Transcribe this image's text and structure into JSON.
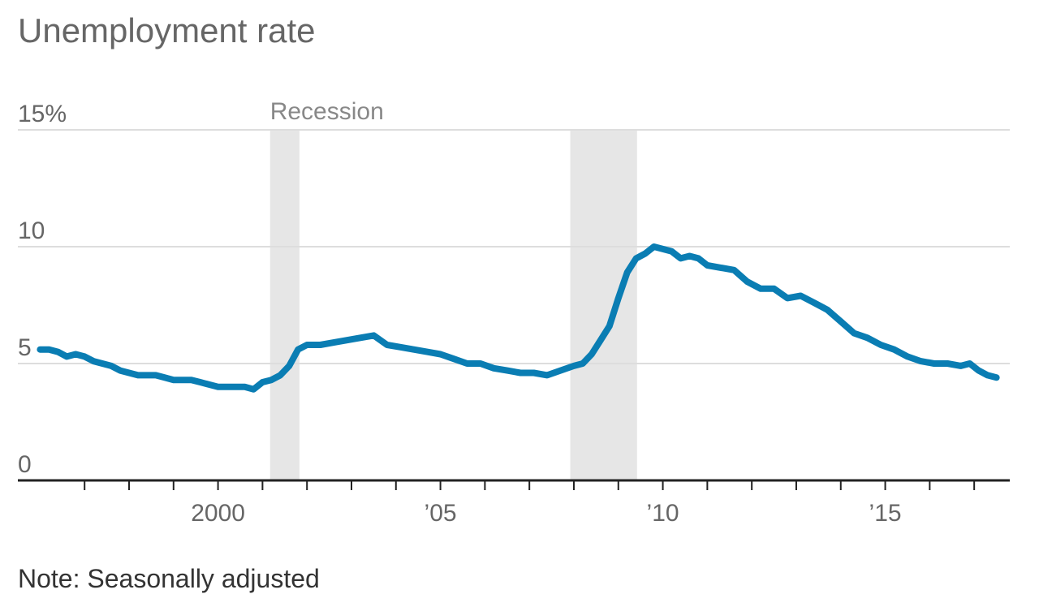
{
  "chart_data": {
    "type": "line",
    "title": "Unemployment rate",
    "note": "Note: Seasonally adjusted",
    "y_unit_label": "15%",
    "y_ticks": [
      {
        "value": 0,
        "label": "0"
      },
      {
        "value": 5,
        "label": "5"
      },
      {
        "value": 10,
        "label": "10"
      },
      {
        "value": 15,
        "label": "15%"
      }
    ],
    "ylim": [
      0,
      15
    ],
    "xlim": [
      1995.5,
      2017.8
    ],
    "x_ticks": [
      {
        "value": 2000,
        "label": "2000"
      },
      {
        "value": 2005,
        "label": "’05"
      },
      {
        "value": 2010,
        "label": "’10"
      },
      {
        "value": 2015,
        "label": "’15"
      }
    ],
    "x_minor_ticks": [
      1997,
      1998,
      1999,
      2001,
      2002,
      2003,
      2004,
      2006,
      2007,
      2008,
      2009,
      2011,
      2012,
      2013,
      2014,
      2016,
      2017
    ],
    "gridlines": [
      5,
      10,
      15
    ],
    "recession_label": "Recession",
    "recessions": [
      {
        "start": 2001.17,
        "end": 2001.83
      },
      {
        "start": 2007.92,
        "end": 2009.42
      }
    ],
    "colors": {
      "line": "#0a7db3",
      "recession": "#e6e6e6",
      "grid": "#dddddd",
      "axis": "#222222",
      "text": "#666666"
    },
    "series": [
      {
        "x": [
          1996.0,
          1996.2,
          1996.4,
          1996.6,
          1996.8,
          1997.0,
          1997.2,
          1997.4,
          1997.6,
          1997.8,
          1998.0,
          1998.2,
          1998.4,
          1998.6,
          1998.8,
          1999.0,
          1999.2,
          1999.4,
          1999.6,
          1999.8,
          2000.0,
          2000.2,
          2000.4,
          2000.6,
          2000.8,
          2001.0,
          2001.2,
          2001.4,
          2001.6,
          2001.8,
          2002.0,
          2002.3,
          2002.6,
          2002.9,
          2003.2,
          2003.5,
          2003.8,
          2004.1,
          2004.4,
          2004.7,
          2005.0,
          2005.3,
          2005.6,
          2005.9,
          2006.2,
          2006.5,
          2006.8,
          2007.1,
          2007.4,
          2007.7,
          2008.0,
          2008.2,
          2008.4,
          2008.6,
          2008.8,
          2009.0,
          2009.2,
          2009.4,
          2009.6,
          2009.8,
          2010.0,
          2010.2,
          2010.4,
          2010.6,
          2010.8,
          2011.0,
          2011.3,
          2011.6,
          2011.9,
          2012.2,
          2012.5,
          2012.8,
          2013.1,
          2013.4,
          2013.7,
          2014.0,
          2014.3,
          2014.6,
          2014.9,
          2015.2,
          2015.5,
          2015.8,
          2016.1,
          2016.4,
          2016.7,
          2016.9,
          2017.1,
          2017.3,
          2017.5
        ],
        "y": [
          5.6,
          5.6,
          5.5,
          5.3,
          5.4,
          5.3,
          5.1,
          5.0,
          4.9,
          4.7,
          4.6,
          4.5,
          4.5,
          4.5,
          4.4,
          4.3,
          4.3,
          4.3,
          4.2,
          4.1,
          4.0,
          4.0,
          4.0,
          4.0,
          3.9,
          4.2,
          4.3,
          4.5,
          4.9,
          5.6,
          5.8,
          5.8,
          5.9,
          6.0,
          6.1,
          6.2,
          5.8,
          5.7,
          5.6,
          5.5,
          5.4,
          5.2,
          5.0,
          5.0,
          4.8,
          4.7,
          4.6,
          4.6,
          4.5,
          4.7,
          4.9,
          5.0,
          5.4,
          6.0,
          6.6,
          7.8,
          8.9,
          9.5,
          9.7,
          10.0,
          9.9,
          9.8,
          9.5,
          9.6,
          9.5,
          9.2,
          9.1,
          9.0,
          8.5,
          8.2,
          8.2,
          7.8,
          7.9,
          7.6,
          7.3,
          6.8,
          6.3,
          6.1,
          5.8,
          5.6,
          5.3,
          5.1,
          5.0,
          5.0,
          4.9,
          5.0,
          4.7,
          4.5,
          4.4
        ]
      }
    ]
  }
}
